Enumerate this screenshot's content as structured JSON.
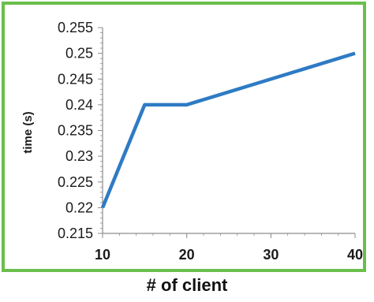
{
  "chart_data": {
    "type": "line",
    "title": "",
    "xlabel": "# of client",
    "ylabel": "time (s)",
    "x": [
      10,
      15,
      20,
      40
    ],
    "series": [
      {
        "values": [
          0.22,
          0.24,
          0.24,
          0.25
        ]
      }
    ],
    "xlim": [
      10,
      40
    ],
    "ylim": [
      0.215,
      0.255
    ],
    "x_ticks": [
      10,
      20,
      30,
      40
    ],
    "y_ticks": [
      0.215,
      0.22,
      0.225,
      0.23,
      0.235,
      0.24,
      0.245,
      0.25,
      0.255
    ],
    "x_tick_labels": [
      "10",
      "20",
      "30",
      "40"
    ],
    "y_tick_labels": [
      "0.215",
      "0.22",
      "0.225",
      "0.23",
      "0.235",
      "0.24",
      "0.245",
      "0.25",
      "0.255"
    ],
    "grid": false,
    "legend": "none",
    "colors": {
      "line": "#2e7bc4",
      "frame": "#6abf4b",
      "axis": "#8c8c8c"
    }
  }
}
